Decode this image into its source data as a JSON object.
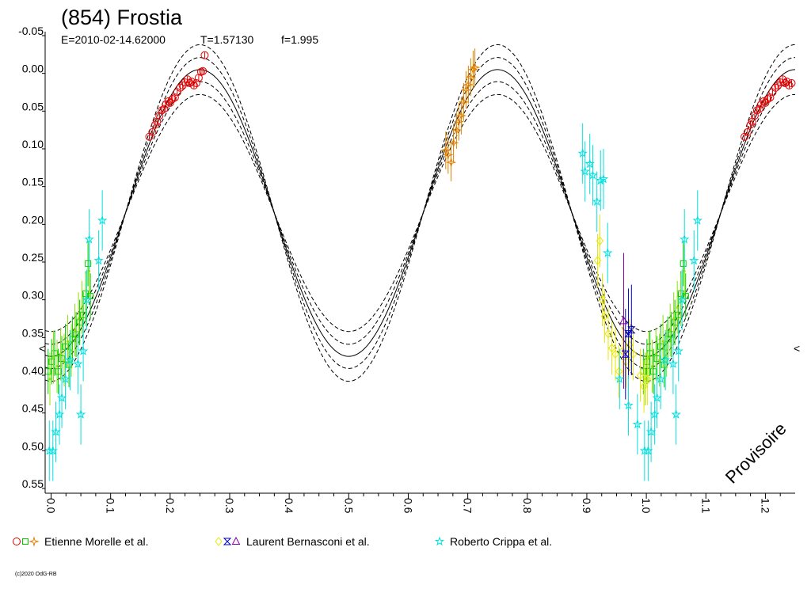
{
  "chart_data": {
    "type": "scatter",
    "title": "(854) Frostia",
    "subtitle": {
      "epoch": "E=2010-02-14.62000",
      "period": "T=1.57130",
      "fraction": "f=1.995"
    },
    "watermark": "Provisoire",
    "copyright": "(c)2020 OdG-RB",
    "xlim": [
      -0.01,
      1.25
    ],
    "ylim": [
      -0.05,
      0.55
    ],
    "y_inverted": true,
    "x_ticks": [
      "0.0",
      "0.1",
      "0.2",
      "0.3",
      "0.4",
      "0.5",
      "0.6",
      "0.7",
      "0.8",
      "0.9",
      "1.0",
      "1.1",
      "1.2"
    ],
    "y_ticks": [
      "-0.05",
      "0.00",
      "0.05",
      "0.10",
      "0.15",
      "0.20",
      "0.25",
      "0.30",
      "0.35",
      "0.40",
      "0.45",
      "0.50",
      "0.55"
    ],
    "edge_markers": {
      "left": "<",
      "right": "<",
      "y": 0.36
    },
    "grid": false,
    "legend_position": "bottom",
    "model_curve": {
      "mean": 0.185,
      "amp1": 0.0,
      "phase1": 0.0,
      "amp2": 0.19,
      "phase2": 0.0,
      "offsets": [
        -0.033,
        -0.016,
        0.0,
        0.016,
        0.033
      ],
      "styles": [
        "dashed",
        "dashed",
        "solid",
        "dashed",
        "dashed"
      ]
    },
    "legend": [
      {
        "observer": "Etienne Morelle et al.",
        "markers": [
          {
            "shape": "circle",
            "color": "#e00000"
          },
          {
            "shape": "square",
            "color": "#00cc00"
          },
          {
            "shape": "star4",
            "color": "#e08000"
          }
        ]
      },
      {
        "observer": "Laurent Bernasconi et al.",
        "markers": [
          {
            "shape": "diamond",
            "color": "#e8e800"
          },
          {
            "shape": "bowtie",
            "color": "#0000cc"
          },
          {
            "shape": "triangle",
            "color": "#8000a0"
          }
        ]
      },
      {
        "observer": "Roberto Crippa et al.",
        "markers": [
          {
            "shape": "star5",
            "color": "#00e0e0"
          }
        ]
      }
    ],
    "series": [
      {
        "color": "#e00000",
        "shape": "circle",
        "err": 0.004,
        "points": [
          [
            0.165,
            0.084
          ],
          [
            0.17,
            0.078
          ],
          [
            0.175,
            0.068
          ],
          [
            0.178,
            0.064
          ],
          [
            0.182,
            0.056
          ],
          [
            0.186,
            0.049
          ],
          [
            0.19,
            0.047
          ],
          [
            0.193,
            0.041
          ],
          [
            0.197,
            0.037
          ],
          [
            0.2,
            0.039
          ],
          [
            0.204,
            0.034
          ],
          [
            0.208,
            0.032
          ],
          [
            0.212,
            0.025
          ],
          [
            0.217,
            0.019
          ],
          [
            0.221,
            0.016
          ],
          [
            0.225,
            0.012
          ],
          [
            0.229,
            0.008
          ],
          [
            0.233,
            0.013
          ],
          [
            0.236,
            0.011
          ],
          [
            0.24,
            0.016
          ],
          [
            0.244,
            0.013
          ],
          [
            0.248,
            0.006
          ],
          [
            0.252,
            -0.002
          ],
          [
            0.255,
            -0.003
          ],
          [
            0.258,
            -0.024
          ],
          [
            1.165,
            0.084
          ],
          [
            1.17,
            0.078
          ],
          [
            1.175,
            0.068
          ],
          [
            1.178,
            0.064
          ],
          [
            1.182,
            0.056
          ],
          [
            1.186,
            0.049
          ],
          [
            1.19,
            0.047
          ],
          [
            1.193,
            0.041
          ],
          [
            1.197,
            0.037
          ],
          [
            1.2,
            0.039
          ],
          [
            1.204,
            0.034
          ],
          [
            1.208,
            0.032
          ],
          [
            1.212,
            0.025
          ],
          [
            1.217,
            0.019
          ],
          [
            1.221,
            0.016
          ],
          [
            1.225,
            0.012
          ],
          [
            1.229,
            0.008
          ],
          [
            1.233,
            0.013
          ],
          [
            1.236,
            0.011
          ],
          [
            1.24,
            0.016
          ],
          [
            1.244,
            0.013
          ]
        ]
      },
      {
        "color": "#e08000",
        "shape": "star4",
        "err": 0.025,
        "points": [
          [
            0.663,
            0.102
          ],
          [
            0.667,
            0.108
          ],
          [
            0.672,
            0.118
          ],
          [
            0.676,
            0.092
          ],
          [
            0.681,
            0.075
          ],
          [
            0.685,
            0.064
          ],
          [
            0.689,
            0.056
          ],
          [
            0.693,
            0.038
          ],
          [
            0.697,
            0.022
          ],
          [
            0.701,
            0.015
          ],
          [
            0.705,
            0.005
          ],
          [
            0.709,
            -0.005
          ],
          [
            0.712,
            -0.008
          ]
        ]
      },
      {
        "color": "#00cc00",
        "shape": "square",
        "err": 0.03,
        "points": [
          [
            -0.005,
            0.395
          ],
          [
            0.001,
            0.382
          ],
          [
            0.006,
            0.371
          ],
          [
            0.012,
            0.395
          ],
          [
            0.018,
            0.378
          ],
          [
            0.024,
            0.362
          ],
          [
            0.03,
            0.386
          ],
          [
            0.036,
            0.352
          ],
          [
            0.042,
            0.346
          ],
          [
            0.048,
            0.33
          ],
          [
            0.054,
            0.32
          ],
          [
            0.058,
            0.292
          ],
          [
            0.062,
            0.252
          ],
          [
            0.066,
            0.295
          ],
          [
            0.995,
            0.395
          ],
          [
            1.001,
            0.382
          ],
          [
            1.006,
            0.371
          ],
          [
            1.012,
            0.395
          ],
          [
            1.018,
            0.378
          ],
          [
            1.024,
            0.362
          ],
          [
            1.03,
            0.386
          ],
          [
            1.036,
            0.352
          ],
          [
            1.042,
            0.346
          ],
          [
            1.048,
            0.33
          ],
          [
            1.054,
            0.32
          ],
          [
            1.058,
            0.292
          ],
          [
            1.062,
            0.252
          ],
          [
            1.066,
            0.295
          ]
        ]
      },
      {
        "color": "#8ee000",
        "shape": "none",
        "err": 0.035,
        "points": [
          [
            -0.002,
            0.405
          ],
          [
            0.004,
            0.376
          ],
          [
            0.01,
            0.388
          ],
          [
            0.016,
            0.372
          ],
          [
            0.022,
            0.38
          ],
          [
            0.028,
            0.355
          ],
          [
            0.034,
            0.367
          ],
          [
            0.04,
            0.34
          ],
          [
            0.046,
            0.325
          ],
          [
            0.052,
            0.31
          ],
          [
            0.058,
            0.3
          ],
          [
            0.064,
            0.262
          ],
          [
            0.998,
            0.405
          ],
          [
            1.004,
            0.376
          ],
          [
            1.01,
            0.388
          ],
          [
            1.016,
            0.372
          ],
          [
            1.022,
            0.38
          ],
          [
            1.028,
            0.355
          ],
          [
            1.034,
            0.367
          ],
          [
            1.04,
            0.34
          ],
          [
            1.046,
            0.325
          ],
          [
            1.052,
            0.31
          ],
          [
            1.058,
            0.3
          ],
          [
            1.064,
            0.262
          ]
        ]
      },
      {
        "color": "#e8e800",
        "shape": "diamond",
        "err": 0.035,
        "points": [
          [
            0.918,
            0.248
          ],
          [
            0.922,
            0.222
          ],
          [
            0.926,
            0.3
          ],
          [
            0.93,
            0.322
          ],
          [
            0.936,
            0.345
          ],
          [
            0.942,
            0.364
          ],
          [
            0.948,
            0.372
          ],
          [
            0.954,
            0.395
          ],
          [
            0.96,
            0.368
          ],
          [
            0.966,
            0.382
          ],
          [
            0.972,
            0.36
          ],
          [
            0.978,
            0.372
          ],
          [
            0.99,
            0.4
          ],
          [
            0.996,
            0.415
          ],
          [
            1.002,
            0.405
          ]
        ]
      },
      {
        "color": "#0000cc",
        "shape": "bowtie",
        "err": 0.06,
        "points": [
          [
            0.965,
            0.372
          ],
          [
            0.97,
            0.345
          ],
          [
            0.975,
            0.34
          ]
        ]
      },
      {
        "color": "#8000a0",
        "shape": "triangle",
        "err": 0.09,
        "points": [
          [
            0.962,
            0.328
          ]
        ]
      },
      {
        "color": "#00e0e0",
        "shape": "star5",
        "err": 0.04,
        "points": [
          [
            -0.003,
            0.5
          ],
          [
            0.003,
            0.5
          ],
          [
            0.008,
            0.475
          ],
          [
            0.014,
            0.452
          ],
          [
            0.018,
            0.43
          ],
          [
            0.024,
            0.405
          ],
          [
            0.032,
            0.38
          ],
          [
            0.045,
            0.385
          ],
          [
            0.05,
            0.452
          ],
          [
            0.054,
            0.368
          ],
          [
            0.06,
            0.3
          ],
          [
            0.064,
            0.22
          ],
          [
            0.08,
            0.248
          ],
          [
            0.086,
            0.195
          ],
          [
            0.893,
            0.106
          ],
          [
            0.897,
            0.13
          ],
          [
            0.905,
            0.12
          ],
          [
            0.91,
            0.135
          ],
          [
            0.917,
            0.17
          ],
          [
            0.923,
            0.142
          ],
          [
            0.928,
            0.14
          ],
          [
            0.935,
            0.238
          ],
          [
            0.955,
            0.405
          ],
          [
            0.97,
            0.44
          ],
          [
            0.985,
            0.465
          ],
          [
            0.997,
            0.5
          ],
          [
            1.003,
            0.5
          ],
          [
            1.008,
            0.475
          ],
          [
            1.014,
            0.452
          ],
          [
            1.018,
            0.43
          ],
          [
            1.024,
            0.405
          ],
          [
            1.032,
            0.38
          ],
          [
            1.045,
            0.385
          ],
          [
            1.05,
            0.452
          ],
          [
            1.054,
            0.368
          ],
          [
            1.06,
            0.3
          ],
          [
            1.064,
            0.22
          ],
          [
            1.08,
            0.248
          ],
          [
            1.086,
            0.195
          ]
        ]
      }
    ]
  }
}
